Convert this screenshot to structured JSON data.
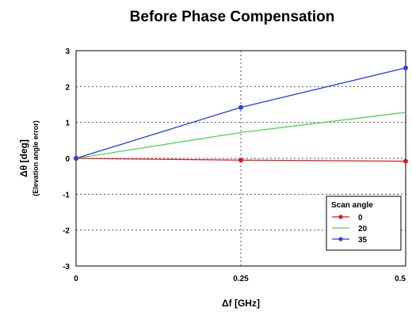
{
  "chart_data": {
    "type": "line",
    "title": "Before Phase Compensation",
    "xlabel": "Δf [GHz]",
    "ylabel": "Δθ  [deg]",
    "ylabel_sub": "(Elevation angle error)",
    "xlim": [
      0,
      0.5
    ],
    "ylim": [
      -3,
      3
    ],
    "x_ticks": [
      0,
      0.25,
      0.5
    ],
    "x_tick_labels": [
      "0",
      "0.25",
      "0.5"
    ],
    "y_ticks": [
      -3,
      -2,
      -1,
      0,
      1,
      2,
      3
    ],
    "y_tick_labels": [
      "-3",
      "-2",
      "-1",
      "0",
      "1",
      "2",
      "3"
    ],
    "grid": true,
    "legend": {
      "title": "Scan angle",
      "position": "bottom-right"
    },
    "x": [
      0,
      0.25,
      0.5
    ],
    "series": [
      {
        "name": "0",
        "color": "#e8141e",
        "marker": true,
        "values": [
          0,
          -0.05,
          -0.08
        ]
      },
      {
        "name": "20",
        "color": "#4cd84c",
        "marker": false,
        "values": [
          0,
          0.72,
          1.28
        ]
      },
      {
        "name": "35",
        "color": "#2a3ee6",
        "marker": true,
        "values": [
          0,
          1.42,
          2.52
        ]
      }
    ]
  }
}
